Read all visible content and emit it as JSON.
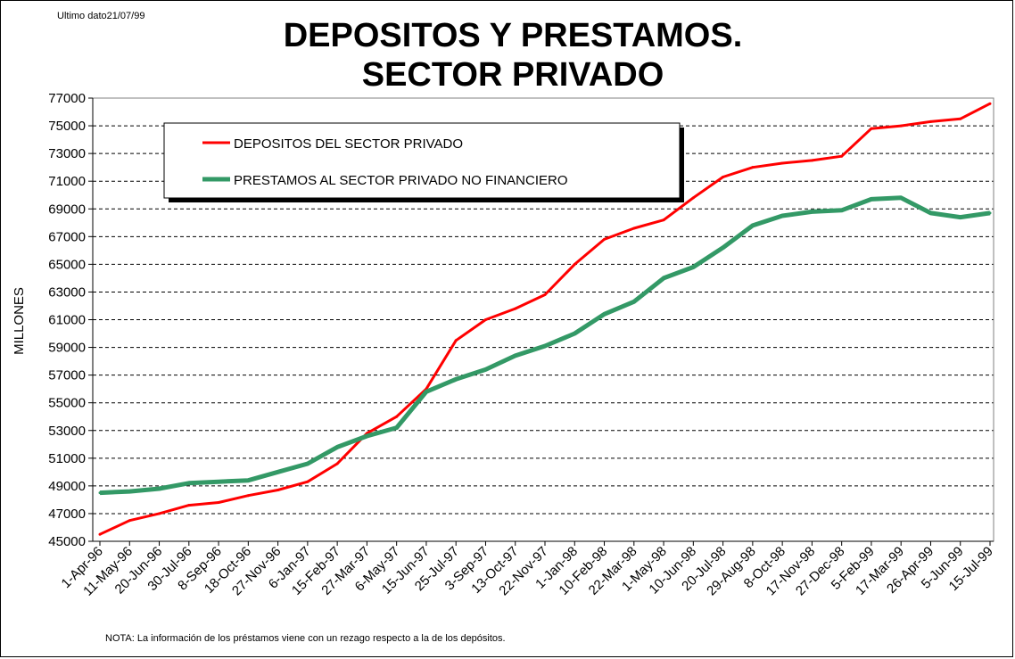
{
  "header": {
    "last_data": "Ultimo dato21/07/99",
    "title_line1": "DEPOSITOS Y PRESTAMOS.",
    "title_line2": "SECTOR PRIVADO"
  },
  "footer": {
    "note": "NOTA: La información de los préstamos viene con un rezago respecto a la de los depósitos."
  },
  "colors": {
    "depositos": "#ff0000",
    "prestamos": "#339966",
    "grid": "#000000"
  },
  "chart_data": {
    "type": "line",
    "title": "DEPOSITOS Y PRESTAMOS. SECTOR PRIVADO",
    "ylabel": "MILLONES",
    "xlabel": "",
    "ylim": [
      45000,
      77000
    ],
    "y_ticks": [
      45000,
      47000,
      49000,
      51000,
      53000,
      55000,
      57000,
      59000,
      61000,
      63000,
      65000,
      67000,
      69000,
      71000,
      73000,
      75000,
      77000
    ],
    "y_tick_labels": [
      "45000",
      "47000",
      "49000",
      "51000",
      "53000",
      "55000",
      "57000",
      "59000",
      "61000",
      "63000",
      "65000",
      "67000",
      "69000",
      "71000",
      "73000",
      "75000",
      "77000"
    ],
    "grid": "horizontal dashed",
    "legend_position": "top-left",
    "x": [
      "1-Apr-96",
      "11-May-96",
      "20-Jun-96",
      "30-Jul-96",
      "8-Sep-96",
      "18-Oct-96",
      "27-Nov-96",
      "6-Jan-97",
      "15-Feb-97",
      "27-Mar-97",
      "6-May-97",
      "15-Jun-97",
      "25-Jul-97",
      "3-Sep-97",
      "13-Oct-97",
      "22-Nov-97",
      "1-Jan-98",
      "10-Feb-98",
      "22-Mar-98",
      "1-May-98",
      "10-Jun-98",
      "20-Jul-98",
      "29-Aug-98",
      "8-Oct-98",
      "17-Nov-98",
      "27-Dec-98",
      "5-Feb-99",
      "17-Mar-99",
      "26-Apr-99",
      "5-Jun-99",
      "15-Jul-99"
    ],
    "series": [
      {
        "name": "DEPOSITOS DEL SECTOR PRIVADO",
        "values": [
          45500,
          46500,
          47000,
          47600,
          47800,
          48300,
          48700,
          49300,
          50600,
          52800,
          54000,
          56000,
          59500,
          61000,
          61800,
          62800,
          65000,
          66800,
          67600,
          68200,
          69800,
          71300,
          72000,
          72300,
          72500,
          72800,
          74800,
          75000,
          75300,
          75500,
          76600
        ]
      },
      {
        "name": "PRESTAMOS AL SECTOR PRIVADO NO FINANCIERO",
        "values": [
          48500,
          48600,
          48800,
          49200,
          49300,
          49400,
          50000,
          50600,
          51800,
          52600,
          53200,
          55800,
          56700,
          57400,
          58400,
          59100,
          60000,
          61400,
          62300,
          64000,
          64800,
          66200,
          67800,
          68500,
          68800,
          68900,
          69700,
          69800,
          68700,
          68400,
          68700
        ]
      }
    ]
  }
}
